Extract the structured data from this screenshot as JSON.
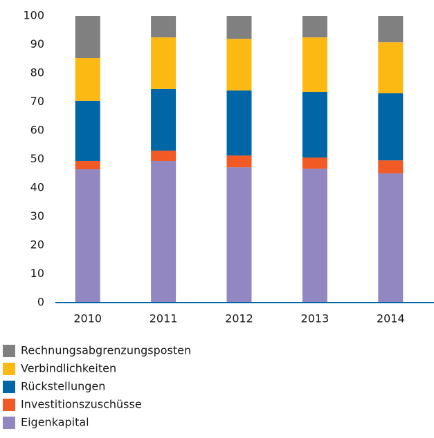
{
  "chart_data": {
    "type": "stacked_bar",
    "categories": [
      "2010",
      "2011",
      "2012",
      "2013",
      "2014"
    ],
    "series": [
      {
        "name": "Eigenkapital",
        "color": "#9287c0",
        "values": [
          46.5,
          49.4,
          47.2,
          46.7,
          45.1
        ]
      },
      {
        "name": "Investitionszuschüsse",
        "color": "#f15a24",
        "values": [
          2.9,
          3.6,
          4.1,
          3.9,
          4.5
        ]
      },
      {
        "name": "Rückstellungen",
        "color": "#0066a6",
        "values": [
          21,
          21.5,
          22.7,
          22.9,
          23.4
        ]
      },
      {
        "name": "Verbindlichkeiten",
        "color": "#fdb913",
        "values": [
          14.9,
          18,
          18,
          19,
          17.8
        ]
      },
      {
        "name": "Rechnungsabgrenzungsposten",
        "color": "#808080",
        "values": [
          14.7,
          7.5,
          8,
          7.5,
          9.2
        ]
      }
    ],
    "ylim": [
      0,
      100
    ],
    "yticks": [
      0,
      10,
      20,
      30,
      40,
      50,
      60,
      70,
      80,
      90,
      100
    ],
    "grid": false,
    "legend": "bottom"
  }
}
